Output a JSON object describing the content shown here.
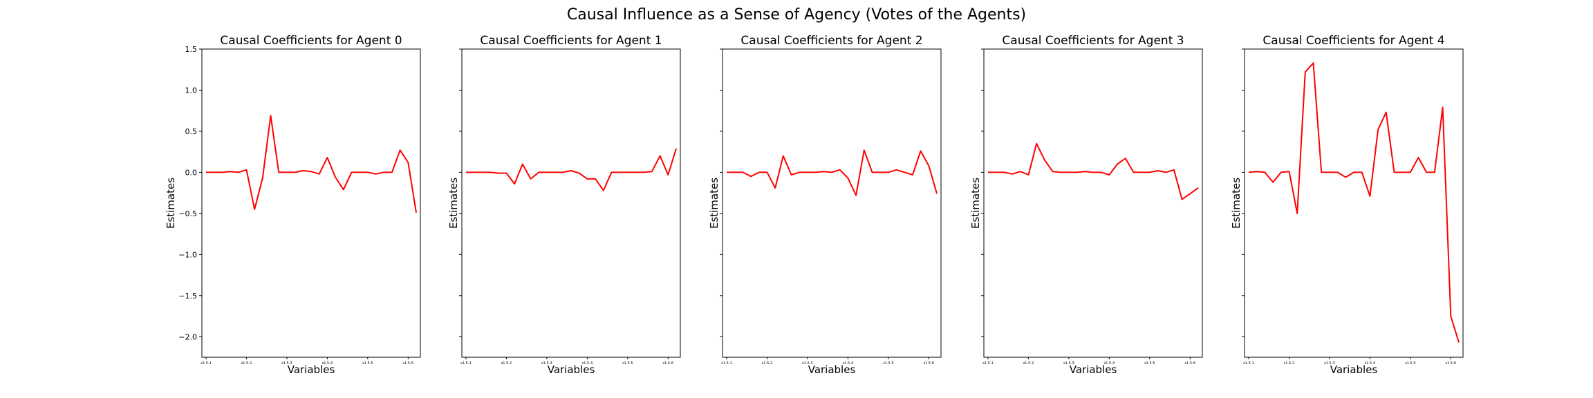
{
  "chart_data": {
    "type": "line",
    "suptitle": "Causal Influence as a Sense of Agency (Votes of the Agents)",
    "xlabel": "Variables",
    "ylabel": "Estimates",
    "ylim": [
      -2.25,
      1.5
    ],
    "yticks": [
      -2.0,
      -1.5,
      -1.0,
      -0.5,
      0.0,
      0.5,
      1.0,
      1.5
    ],
    "ytick_labels": [
      "−2.0",
      "−1.5",
      "−1.0",
      "−0.5",
      "0.0",
      "0.5",
      "1.0",
      "1.5"
    ],
    "xtick_positions": [
      0,
      5,
      10,
      15,
      20,
      25
    ],
    "xtick_labels": [
      "s1.5-1",
      "s1.5-2",
      "s1.5-3",
      "s1.5-4",
      "s1.5-5",
      "s1.5-6"
    ],
    "color": "#ff0000",
    "panels": [
      {
        "title": "Causal Coefficients for Agent 0",
        "values": [
          0.0,
          0.0,
          0.0,
          0.01,
          0.0,
          0.03,
          -0.45,
          -0.07,
          0.69,
          0.0,
          0.0,
          0.0,
          0.02,
          0.01,
          -0.02,
          0.18,
          -0.06,
          -0.21,
          0.0,
          0.0,
          0.0,
          -0.02,
          0.0,
          0.0,
          0.27,
          0.12,
          -0.49
        ]
      },
      {
        "title": "Causal Coefficients for Agent 1",
        "values": [
          0.0,
          0.0,
          0.0,
          0.0,
          -0.01,
          -0.01,
          -0.14,
          0.1,
          -0.08,
          0.0,
          0.0,
          0.0,
          0.0,
          0.02,
          -0.01,
          -0.08,
          -0.08,
          -0.22,
          0.0,
          0.0,
          0.0,
          0.0,
          0.0,
          0.01,
          0.2,
          -0.03,
          0.29
        ]
      },
      {
        "title": "Causal Coefficients for Agent 2",
        "values": [
          0.0,
          0.0,
          0.0,
          -0.05,
          0.0,
          0.0,
          -0.19,
          0.2,
          -0.03,
          0.0,
          0.0,
          0.0,
          0.01,
          0.0,
          0.03,
          -0.07,
          -0.28,
          0.27,
          0.0,
          0.0,
          0.0,
          0.03,
          0.0,
          -0.03,
          0.26,
          0.08,
          -0.26
        ]
      },
      {
        "title": "Causal Coefficients for Agent 3",
        "values": [
          0.0,
          0.0,
          0.0,
          -0.02,
          0.01,
          -0.03,
          0.35,
          0.15,
          0.01,
          0.0,
          0.0,
          0.0,
          0.01,
          0.0,
          0.0,
          -0.03,
          0.1,
          0.17,
          0.0,
          0.0,
          0.0,
          0.02,
          0.0,
          0.03,
          -0.33,
          -0.26,
          -0.19
        ]
      },
      {
        "title": "Causal Coefficients for Agent 4",
        "values": [
          0.0,
          0.01,
          0.0,
          -0.12,
          0.0,
          0.01,
          -0.5,
          1.22,
          1.33,
          0.0,
          0.0,
          0.0,
          -0.06,
          0.0,
          0.0,
          -0.29,
          0.52,
          0.73,
          0.0,
          0.0,
          0.0,
          0.18,
          0.0,
          0.0,
          0.79,
          -1.75,
          -2.07
        ]
      }
    ]
  }
}
